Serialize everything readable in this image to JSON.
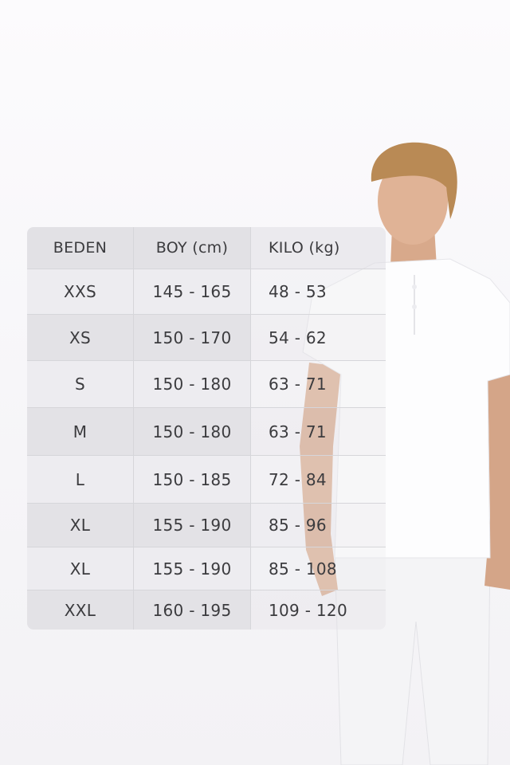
{
  "size_chart": {
    "headers": [
      "BEDEN",
      "BOY (cm)",
      "KILO (kg)"
    ],
    "rows": [
      [
        "XXS",
        "145 - 165",
        "48 - 53"
      ],
      [
        "XS",
        "150 - 170",
        "54 - 62"
      ],
      [
        "S",
        "150 - 180",
        "63 - 71"
      ],
      [
        "M",
        "150 - 180",
        "63 - 71"
      ],
      [
        "L",
        "150 - 185",
        "72 - 84"
      ],
      [
        "XL",
        "155 - 190",
        "85 - 96"
      ],
      [
        "XL",
        "155 - 190",
        "85 - 108"
      ],
      [
        "XXL",
        "160 - 195",
        "109 - 120"
      ]
    ]
  },
  "model_photo": {
    "subject": "model-in-white-henley-tshirt"
  }
}
